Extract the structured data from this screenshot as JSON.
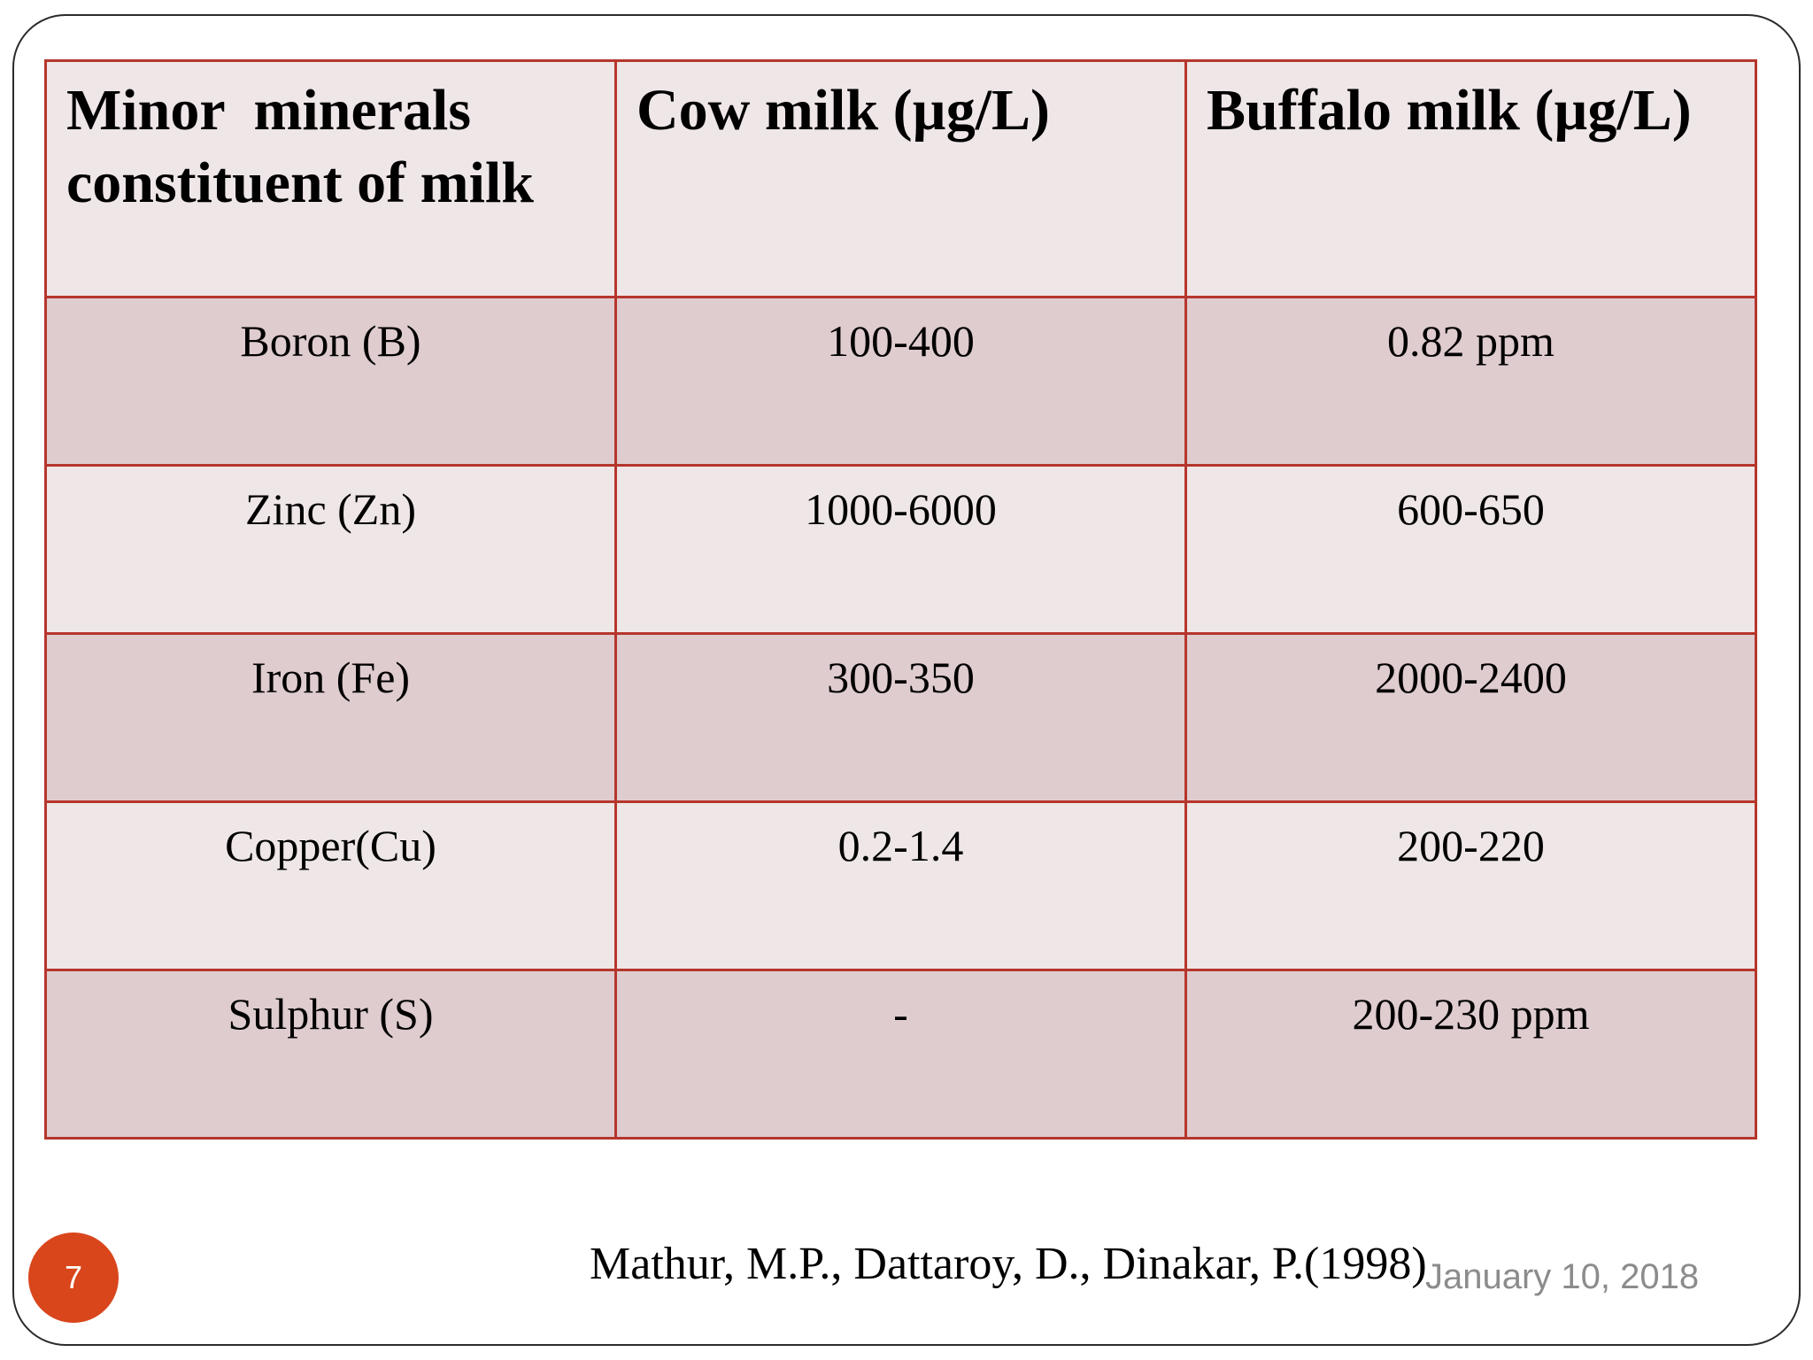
{
  "table": {
    "headers": [
      "Minor  minerals constituent of milk",
      "Cow milk (µg/L)",
      "Buffalo milk (µg/L)"
    ],
    "rows": [
      [
        "Boron (B)",
        "100-400",
        "0.82 ppm"
      ],
      [
        "Zinc (Zn)",
        "1000-6000",
        "600-650"
      ],
      [
        "Iron (Fe)",
        "300-350",
        "2000-2400"
      ],
      [
        "Copper(Cu)",
        "0.2-1.4",
        "200-220"
      ],
      [
        "Sulphur (S)",
        "-",
        "200-230 ppm"
      ]
    ]
  },
  "footer": {
    "citation": "Mathur, M.P., Dattaroy, D., Dinakar, P.(1998)",
    "date": "January 10, 2018",
    "slide_number": "7"
  },
  "colors": {
    "table_border": "#b5362c",
    "header_bg": "#efe6e8",
    "row_dark_bg": "#dfcccf",
    "row_light_bg": "#efe7e7",
    "slide_number_bg": "#d9461c"
  }
}
